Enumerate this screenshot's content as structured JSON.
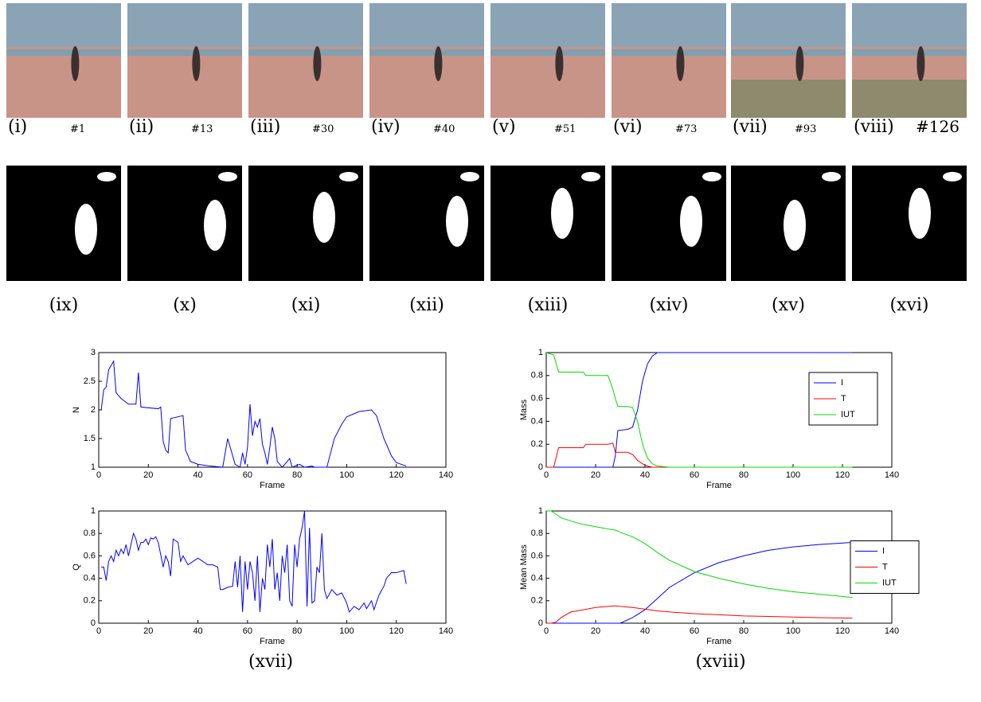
{
  "panels": {
    "photos": [
      {
        "label": "(i)",
        "frame": "#1"
      },
      {
        "label": "(ii)",
        "frame": "#13"
      },
      {
        "label": "(iii)",
        "frame": "#30"
      },
      {
        "label": "(iv)",
        "frame": "#40"
      },
      {
        "label": "(v)",
        "frame": "#51"
      },
      {
        "label": "(vi)",
        "frame": "#73"
      },
      {
        "label": "(vii)",
        "frame": "#93"
      },
      {
        "label": "(viii)",
        "frame": "#126"
      }
    ],
    "masks": [
      "(ix)",
      "(x)",
      "(xi)",
      "(xii)",
      "(xiii)",
      "(xiv)",
      "(xv)",
      "(xvi)"
    ],
    "captions": [
      "(xvii)",
      "(xviii)"
    ]
  },
  "chart_data": [
    {
      "type": "line",
      "xlabel": "Frame",
      "ylabel": "N",
      "xlim": [
        0,
        140
      ],
      "xticks": [
        0,
        20,
        40,
        60,
        80,
        100,
        120,
        140
      ],
      "ylim": [
        1,
        3
      ],
      "yticks": [
        1,
        1.5,
        2,
        2.5,
        3
      ],
      "x": [
        1,
        2,
        3,
        4,
        6,
        7,
        9,
        12,
        15,
        16,
        17,
        24,
        25,
        26,
        27,
        28,
        29,
        34,
        35,
        37,
        40,
        45,
        50,
        52,
        55,
        57,
        58,
        59,
        60,
        61,
        62,
        63,
        64,
        65,
        66,
        67,
        68,
        69,
        70,
        71,
        72,
        74,
        77,
        78,
        81,
        83,
        86,
        87,
        92,
        95,
        98,
        100,
        105,
        110,
        112,
        115,
        118,
        120,
        124
      ],
      "series": [
        {
          "color": "#0000ff",
          "values": [
            2.0,
            2.35,
            2.4,
            2.7,
            2.85,
            2.3,
            2.2,
            2.1,
            2.1,
            2.65,
            2.05,
            2.02,
            2.05,
            1.45,
            1.3,
            1.25,
            1.85,
            1.9,
            1.3,
            1.1,
            1.05,
            1.02,
            1.0,
            1.5,
            1.05,
            1.0,
            1.25,
            1.05,
            1.35,
            2.1,
            1.55,
            1.8,
            1.7,
            1.85,
            1.4,
            1.25,
            1.05,
            1.35,
            1.7,
            1.5,
            1.1,
            1.0,
            1.15,
            1.0,
            1.05,
            1.0,
            1.02,
            1.0,
            1.0,
            1.5,
            1.75,
            1.88,
            1.97,
            2.0,
            1.9,
            1.5,
            1.2,
            1.08,
            1.02
          ]
        }
      ]
    },
    {
      "type": "line",
      "xlabel": "Frame",
      "ylabel": "Q",
      "xlim": [
        0,
        140
      ],
      "xticks": [
        0,
        20,
        40,
        60,
        80,
        100,
        120,
        140
      ],
      "ylim": [
        0,
        1
      ],
      "yticks": [
        0,
        0.2,
        0.4,
        0.6,
        0.8,
        1
      ],
      "x": [
        1,
        2,
        3,
        4,
        5,
        6,
        7,
        8,
        9,
        10,
        11,
        12,
        14,
        15,
        16,
        17,
        18,
        19,
        20,
        21,
        22,
        23,
        24,
        26,
        27,
        28,
        29,
        30,
        32,
        33,
        34,
        36,
        38,
        40,
        42,
        44,
        46,
        48,
        49,
        50,
        52,
        54,
        55,
        56,
        57,
        58,
        59,
        60,
        61,
        62,
        63,
        64,
        65,
        66,
        67,
        68,
        69,
        70,
        71,
        72,
        73,
        74,
        75,
        76,
        77,
        78,
        79,
        80,
        81,
        82,
        83,
        84,
        85,
        86,
        87,
        88,
        89,
        90,
        91,
        92,
        94,
        96,
        98,
        100,
        101,
        103,
        105,
        107,
        108,
        110,
        111,
        113,
        115,
        116,
        118,
        120,
        123,
        124
      ],
      "series": [
        {
          "color": "#0000ff",
          "values": [
            0.5,
            0.5,
            0.38,
            0.55,
            0.6,
            0.55,
            0.65,
            0.6,
            0.66,
            0.62,
            0.7,
            0.6,
            0.8,
            0.75,
            0.65,
            0.72,
            0.72,
            0.75,
            0.7,
            0.76,
            0.75,
            0.77,
            0.72,
            0.5,
            0.6,
            0.55,
            0.42,
            0.75,
            0.72,
            0.55,
            0.6,
            0.52,
            0.55,
            0.58,
            0.55,
            0.52,
            0.52,
            0.5,
            0.3,
            0.3,
            0.32,
            0.33,
            0.55,
            0.32,
            0.6,
            0.1,
            0.55,
            0.3,
            0.55,
            0.45,
            0.2,
            0.6,
            0.1,
            0.4,
            0.3,
            0.7,
            0.5,
            0.75,
            0.3,
            0.45,
            0.2,
            0.6,
            0.45,
            0.7,
            0.2,
            0.15,
            0.7,
            0.5,
            0.75,
            0.85,
            1.0,
            0.15,
            0.85,
            0.18,
            0.2,
            0.5,
            0.45,
            0.8,
            0.3,
            0.22,
            0.3,
            0.25,
            0.27,
            0.18,
            0.1,
            0.15,
            0.12,
            0.18,
            0.13,
            0.2,
            0.12,
            0.25,
            0.33,
            0.4,
            0.45,
            0.45,
            0.47,
            0.35
          ]
        }
      ]
    },
    {
      "type": "line",
      "xlabel": "Frame",
      "ylabel": "Mass",
      "xlim": [
        0,
        140
      ],
      "xticks": [
        0,
        20,
        40,
        60,
        80,
        100,
        120,
        140
      ],
      "ylim": [
        0,
        1
      ],
      "yticks": [
        0,
        0.2,
        0.4,
        0.6,
        0.8,
        1
      ],
      "legend": "upper right",
      "x": [
        0,
        3,
        5,
        15,
        16,
        25,
        27,
        28,
        29,
        33,
        35,
        37,
        39,
        41,
        43,
        45,
        50,
        60,
        80,
        100,
        124
      ],
      "series": [
        {
          "name": "I",
          "color": "#0000ff",
          "values": [
            0,
            0,
            0,
            0,
            0,
            0,
            0,
            0.1,
            0.32,
            0.33,
            0.35,
            0.5,
            0.75,
            0.9,
            0.97,
            1,
            1,
            1,
            1,
            1,
            1
          ]
        },
        {
          "name": "T",
          "color": "#ff0000",
          "values": [
            0,
            0,
            0.17,
            0.17,
            0.2,
            0.2,
            0.21,
            0.13,
            0.13,
            0.13,
            0.11,
            0.06,
            0.03,
            0.01,
            0,
            0,
            0,
            0,
            0,
            0,
            0
          ]
        },
        {
          "name": "IUT",
          "color": "#00dd00",
          "values": [
            1,
            0.98,
            0.83,
            0.83,
            0.8,
            0.8,
            0.68,
            0.6,
            0.53,
            0.53,
            0.52,
            0.4,
            0.2,
            0.08,
            0.03,
            0.01,
            0,
            0,
            0,
            0,
            0
          ]
        }
      ]
    },
    {
      "type": "line",
      "xlabel": "Frame",
      "ylabel": "Mean Mass",
      "xlim": [
        0,
        140
      ],
      "xticks": [
        0,
        20,
        40,
        60,
        80,
        100,
        120,
        140
      ],
      "ylim": [
        0,
        1
      ],
      "yticks": [
        0,
        0.2,
        0.4,
        0.6,
        0.8,
        1
      ],
      "legend": "right",
      "x": [
        0,
        2,
        4,
        6,
        10,
        15,
        20,
        25,
        28,
        30,
        35,
        40,
        45,
        50,
        60,
        70,
        80,
        90,
        100,
        110,
        124
      ],
      "series": [
        {
          "name": "I",
          "color": "#0000ff",
          "values": [
            0,
            0,
            0,
            0,
            0,
            0,
            0,
            0,
            0,
            0,
            0.05,
            0.12,
            0.22,
            0.32,
            0.45,
            0.54,
            0.6,
            0.65,
            0.68,
            0.7,
            0.72
          ]
        },
        {
          "name": "T",
          "color": "#ff0000",
          "values": [
            0,
            0,
            0.01,
            0.05,
            0.1,
            0.12,
            0.14,
            0.15,
            0.155,
            0.15,
            0.14,
            0.125,
            0.11,
            0.1,
            0.085,
            0.075,
            0.065,
            0.06,
            0.055,
            0.05,
            0.045
          ]
        },
        {
          "name": "IUT",
          "color": "#00dd00",
          "values": [
            1,
            1,
            0.97,
            0.94,
            0.91,
            0.88,
            0.86,
            0.84,
            0.83,
            0.81,
            0.77,
            0.71,
            0.63,
            0.56,
            0.46,
            0.4,
            0.35,
            0.31,
            0.28,
            0.26,
            0.23
          ]
        }
      ]
    }
  ]
}
